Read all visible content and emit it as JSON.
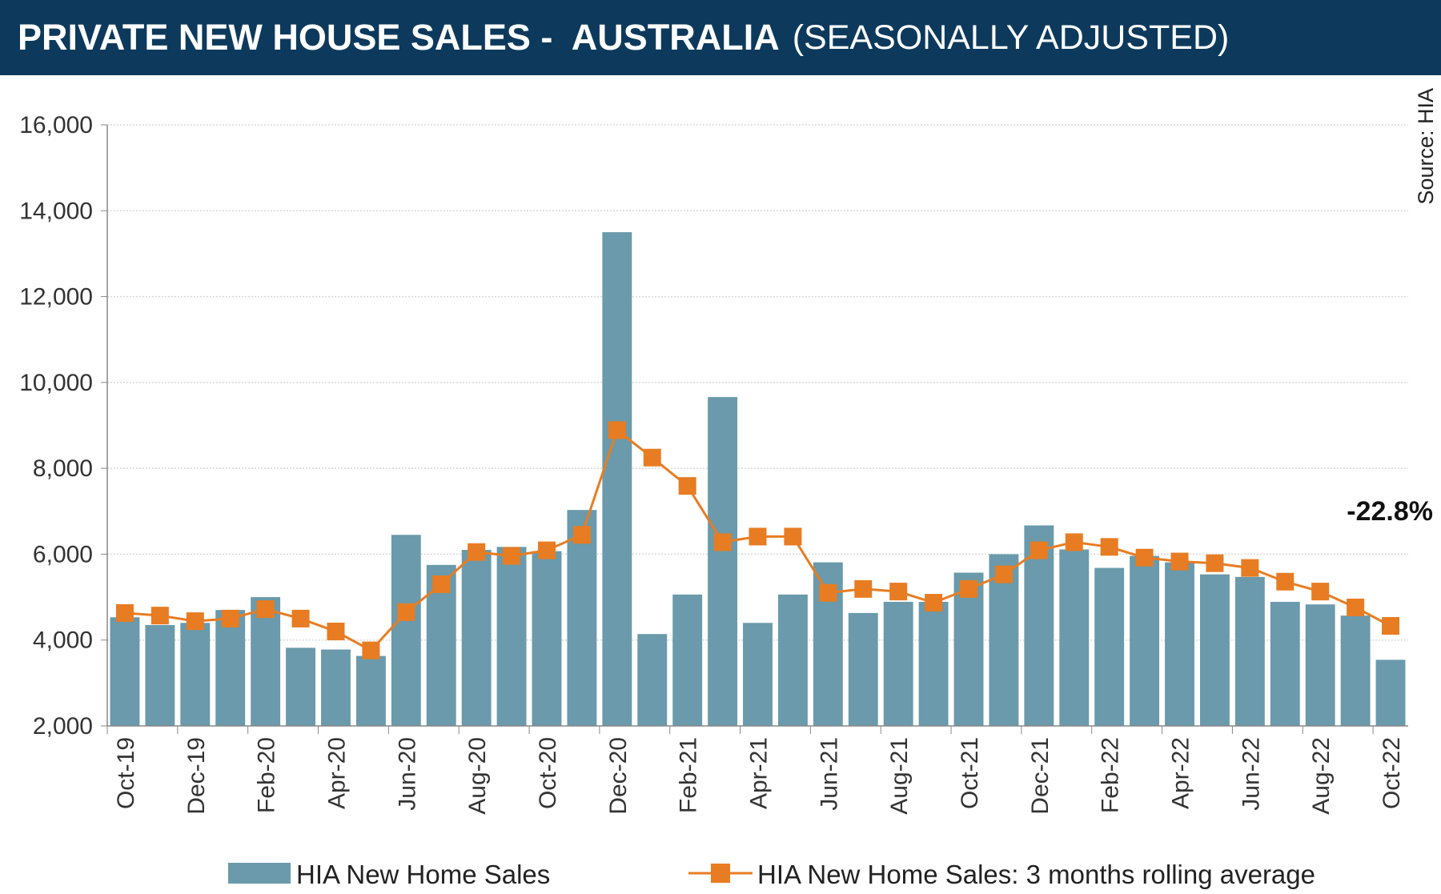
{
  "header": {
    "title": "PRIVATE NEW HOUSE SALES -  AUSTRALIA",
    "subtitle": "(SEASONALLY ADJUSTED)"
  },
  "colors": {
    "header_bg": "#0d3a5c",
    "bar": "#6a9aab",
    "line": "#e87c22",
    "grid": "#d8d8d8"
  },
  "chart_data": {
    "type": "bar+line",
    "title": "PRIVATE NEW HOUSE SALES -  AUSTRALIA (SEASONALLY ADJUSTED)",
    "source": "Source: HIA",
    "annotation": "-22.8%",
    "ylim": [
      2000,
      16000
    ],
    "yticks": [
      "2,000",
      "4,000",
      "6,000",
      "8,000",
      "10,000",
      "12,000",
      "14,000",
      "16,000"
    ],
    "grid": true,
    "legend_placement": "bottom",
    "categories": [
      "Oct-19",
      "Nov-19",
      "Dec-19",
      "Jan-20",
      "Feb-20",
      "Mar-20",
      "Apr-20",
      "May-20",
      "Jun-20",
      "Jul-20",
      "Aug-20",
      "Sep-20",
      "Oct-20",
      "Nov-20",
      "Dec-20",
      "Jan-21",
      "Feb-21",
      "Mar-21",
      "Apr-21",
      "May-21",
      "Jun-21",
      "Jul-21",
      "Aug-21",
      "Sep-21",
      "Oct-21",
      "Nov-21",
      "Dec-21",
      "Jan-22",
      "Feb-22",
      "Mar-22",
      "Apr-22",
      "May-22",
      "Jun-22",
      "Jul-22",
      "Aug-22",
      "Sep-22",
      "Oct-22"
    ],
    "xtick_labels": [
      "Oct-19",
      "Dec-19",
      "Feb-20",
      "Apr-20",
      "Jun-20",
      "Aug-20",
      "Oct-20",
      "Dec-20",
      "Feb-21",
      "Apr-21",
      "Jun-21",
      "Aug-21",
      "Oct-21",
      "Dec-21",
      "Feb-22",
      "Apr-22",
      "Jun-22",
      "Aug-22",
      "Oct-22"
    ],
    "series": [
      {
        "name": "HIA New Home Sales",
        "type": "bar",
        "values": [
          4530,
          4350,
          4400,
          4700,
          5000,
          3820,
          3780,
          3630,
          6450,
          5750,
          6100,
          6170,
          6070,
          7030,
          13500,
          4140,
          5060,
          9660,
          4400,
          5060,
          5810,
          4630,
          4890,
          4890,
          5570,
          6000,
          6670,
          6110,
          5680,
          5960,
          5810,
          5530,
          5470,
          4890,
          4830,
          4570,
          3540
        ]
      },
      {
        "name": "HIA New Home Sales: 3 months rolling average",
        "type": "line",
        "values": [
          4630,
          4570,
          4440,
          4500,
          4720,
          4500,
          4200,
          3760,
          4650,
          5300,
          6050,
          5960,
          6090,
          6450,
          8890,
          8250,
          7590,
          6280,
          6410,
          6410,
          5100,
          5190,
          5130,
          4870,
          5190,
          5530,
          6090,
          6280,
          6170,
          5920,
          5830,
          5790,
          5680,
          5360,
          5130,
          4760,
          4330
        ]
      }
    ]
  }
}
